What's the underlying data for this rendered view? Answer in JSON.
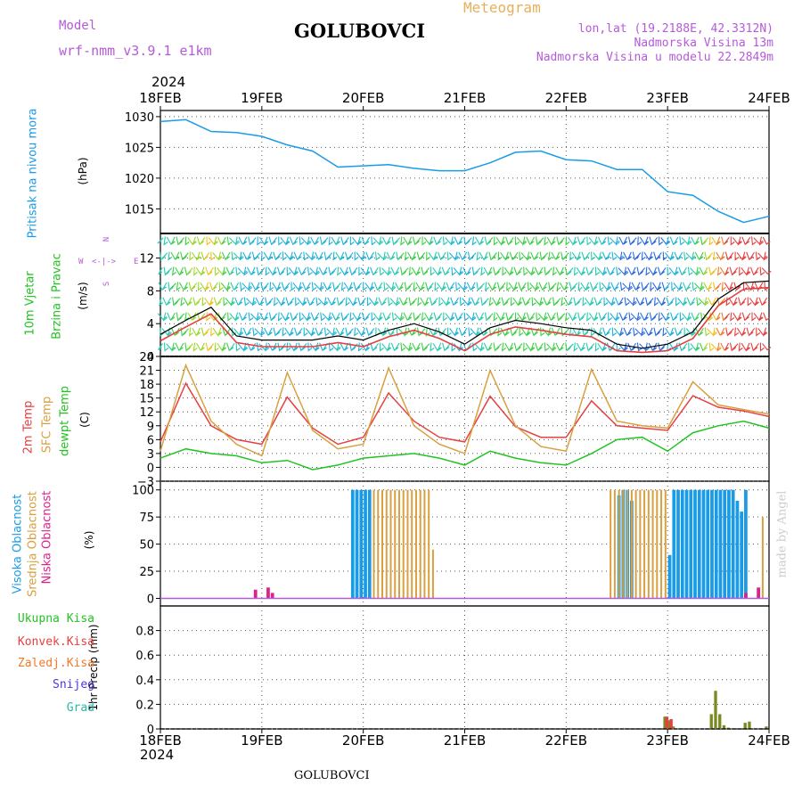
{
  "header": {
    "model_label": "Model",
    "model_name": "wrf-nmm_v3.9.1 e1km",
    "station": "GOLUBOVCI",
    "meteogram": "Meteogram",
    "lonlat": "lon,lat (19.2188E, 42.3312N)",
    "altitude": "Nadmorska Visina 13m",
    "model_altitude": "Nadmorska Visina u modelu 22.2849m",
    "year_top": "2024",
    "year_bottom": "2024",
    "footer_station": "GOLUBOVCI",
    "credit": "made by Angel"
  },
  "colors": {
    "pressure": "#1a9be6",
    "temp2m": "#e64040",
    "sfc": "#d9a040",
    "dewpt": "#22c322",
    "high_cloud": "#1a9be6",
    "mid_cloud": "#d9a040",
    "low_cloud": "#e0208a",
    "total_precip": "#22c322",
    "conv_precip": "#e64040",
    "frz_precip": "#f07a2a",
    "snow": "#4b38d8",
    "grad": "#2ab5a5",
    "wind_line": "#e64040"
  },
  "panels": {
    "pressure": {
      "label": "Pritisak na nivou mora",
      "unit": "(hPa)"
    },
    "wind": {
      "label1": "10m Vjetar",
      "label2": "Brzina i Pravac",
      "unit": "(m/s)",
      "compass": {
        "n": "N",
        "s": "S",
        "e": "E",
        "w": "W"
      }
    },
    "temp": {
      "label1": "2m Temp",
      "label2": "SFC Temp",
      "label3": "dewpt Temp",
      "unit": "(C)"
    },
    "cloud": {
      "label1": "Visoka Oblacnost",
      "label2": "Srednja Oblacnost",
      "label3": "Niska Oblacnost",
      "unit": "(%)"
    },
    "precip": {
      "legend": [
        "Ukupna Kisa",
        "Konvek.Kisa",
        "Zaledj.Kisa",
        "Snijeg",
        "Grad"
      ],
      "unit": "1hr Precip (mm)"
    }
  },
  "chart_data": [
    {
      "type": "line",
      "title": "Pritisak na nivou mora",
      "ylabel": "(hPa)",
      "x_ticks": [
        "18FEB",
        "19FEB",
        "20FEB",
        "21FEB",
        "22FEB",
        "23FEB",
        "24FEB"
      ],
      "ylim": [
        1011,
        1031
      ],
      "yticks": [
        1015,
        1020,
        1025,
        1030
      ],
      "grid": true,
      "series": [
        {
          "x": [
            0,
            6,
            12,
            18,
            24,
            30,
            36,
            42,
            48,
            54,
            60,
            66,
            72,
            78,
            84,
            90,
            96,
            102,
            108,
            114,
            120,
            126,
            132,
            138,
            144
          ],
          "values": [
            1029.2,
            1029.5,
            1027.6,
            1027.4,
            1026.8,
            1025.4,
            1024.4,
            1021.8,
            1022.0,
            1022.2,
            1021.6,
            1021.2,
            1021.2,
            1022.5,
            1024.2,
            1024.4,
            1023.0,
            1022.8,
            1021.4,
            1021.4,
            1017.8,
            1017.2,
            1014.6,
            1012.8,
            1013.8
          ]
        }
      ]
    },
    {
      "type": "line",
      "title": "10m Vjetar Brzina i Pravac",
      "ylabel": "(m/s)",
      "ylim": [
        0,
        15
      ],
      "yticks": [
        0,
        4,
        8,
        12
      ],
      "grid": true,
      "series": [
        {
          "x": [
            0,
            6,
            12,
            18,
            24,
            30,
            36,
            42,
            48,
            54,
            60,
            66,
            72,
            78,
            84,
            90,
            96,
            102,
            108,
            114,
            120,
            126,
            132,
            138,
            144
          ],
          "values": [
            2.7,
            4.4,
            6.0,
            2.5,
            2.0,
            2.0,
            2.0,
            2.5,
            2.0,
            3.2,
            4.0,
            3.0,
            1.5,
            3.5,
            4.4,
            4.0,
            3.5,
            3.2,
            1.5,
            1.0,
            1.5,
            3.0,
            7.0,
            9.0,
            9.2
          ]
        }
      ]
    },
    {
      "type": "line",
      "title": "2m Temp / SFC Temp / dewpt Temp",
      "ylabel": "(C)",
      "ylim": [
        -3,
        24
      ],
      "yticks": [
        -3,
        0,
        3,
        6,
        9,
        12,
        15,
        18,
        21,
        24
      ],
      "grid": true,
      "series": [
        {
          "name": "2m Temp",
          "x": [
            0,
            6,
            12,
            18,
            24,
            30,
            36,
            42,
            48,
            54,
            60,
            66,
            72,
            78,
            84,
            90,
            96,
            102,
            108,
            114,
            120,
            126,
            132,
            138,
            144
          ],
          "values": [
            5.5,
            18.2,
            9.0,
            6.0,
            5.0,
            15.2,
            8.5,
            5.0,
            6.5,
            16.1,
            10.0,
            6.5,
            5.5,
            15.4,
            8.8,
            6.5,
            6.5,
            14.4,
            9.0,
            8.5,
            8.0,
            15.5,
            13.0,
            12.2,
            11.0
          ]
        },
        {
          "name": "SFC Temp",
          "x": [
            0,
            6,
            12,
            18,
            24,
            30,
            36,
            42,
            48,
            54,
            60,
            66,
            72,
            78,
            84,
            90,
            96,
            102,
            108,
            114,
            120,
            126,
            132,
            138,
            144
          ],
          "values": [
            3.5,
            22.1,
            10.0,
            5.0,
            2.5,
            20.5,
            8.0,
            4.0,
            5.0,
            21.5,
            9.0,
            5.0,
            3.0,
            21.0,
            9.0,
            4.5,
            3.5,
            21.2,
            10.0,
            9.0,
            8.5,
            18.5,
            13.5,
            12.5,
            11.5
          ]
        },
        {
          "name": "dewpt Temp",
          "x": [
            0,
            6,
            12,
            18,
            24,
            30,
            36,
            42,
            48,
            54,
            60,
            66,
            72,
            78,
            84,
            90,
            96,
            102,
            108,
            114,
            120,
            126,
            132,
            138,
            144
          ],
          "values": [
            2.0,
            4.0,
            3.0,
            2.5,
            1.0,
            1.5,
            -0.5,
            0.5,
            2.0,
            2.5,
            3.0,
            2.0,
            0.5,
            3.5,
            2.0,
            1.0,
            0.5,
            3.0,
            6.0,
            6.5,
            3.5,
            7.5,
            9.0,
            10.0,
            8.5
          ]
        }
      ]
    },
    {
      "type": "bar",
      "title": "Visoka / Srednja / Niska Oblacnost",
      "ylabel": "(%)",
      "ylim": [
        0,
        100
      ],
      "yticks": [
        0,
        25,
        50,
        75,
        100
      ],
      "series": [
        {
          "name": "Visoka Oblacnost",
          "x": [
            45,
            46,
            47,
            48,
            49,
            108,
            109,
            110,
            111,
            120,
            121,
            122,
            123,
            124,
            125,
            126,
            127,
            128,
            129,
            130,
            131,
            132,
            133,
            134,
            135,
            136,
            137,
            138
          ],
          "values": [
            100,
            100,
            100,
            100,
            100,
            95,
            100,
            100,
            90,
            40,
            100,
            100,
            100,
            100,
            100,
            100,
            100,
            100,
            100,
            100,
            100,
            100,
            100,
            100,
            100,
            90,
            80,
            100
          ]
        },
        {
          "name": "Srednja Oblacnost",
          "x": [
            50,
            51,
            52,
            53,
            54,
            55,
            56,
            57,
            58,
            59,
            60,
            61,
            62,
            63,
            64,
            106,
            107,
            108,
            109,
            110,
            111,
            112,
            113,
            114,
            115,
            116,
            117,
            118,
            119,
            142
          ],
          "values": [
            100,
            100,
            100,
            100,
            100,
            100,
            100,
            100,
            100,
            100,
            100,
            100,
            100,
            100,
            45,
            100,
            100,
            100,
            100,
            100,
            100,
            100,
            100,
            100,
            100,
            100,
            100,
            100,
            100,
            75
          ]
        },
        {
          "name": "Niska Oblacnost",
          "x": [
            22,
            25,
            26,
            138,
            141
          ],
          "values": [
            8,
            10,
            5,
            5,
            10
          ]
        }
      ]
    },
    {
      "type": "bar",
      "title": "1hr Precip",
      "ylabel": "1hr Precip (mm)",
      "ylim": [
        0,
        1.0
      ],
      "yticks": [
        0,
        0.2,
        0.4,
        0.6,
        0.8
      ],
      "series": [
        {
          "name": "Ukupna Kisa",
          "x": [
            119,
            120,
            121,
            130,
            131,
            132,
            133,
            134,
            138,
            139,
            143
          ],
          "values": [
            0.1,
            0.07,
            0.02,
            0.12,
            0.31,
            0.12,
            0.03,
            0.01,
            0.05,
            0.06,
            0.02
          ]
        },
        {
          "name": "Konvek.Kisa",
          "x": [
            119,
            120
          ],
          "values": [
            0.1,
            0.08
          ]
        }
      ]
    }
  ]
}
